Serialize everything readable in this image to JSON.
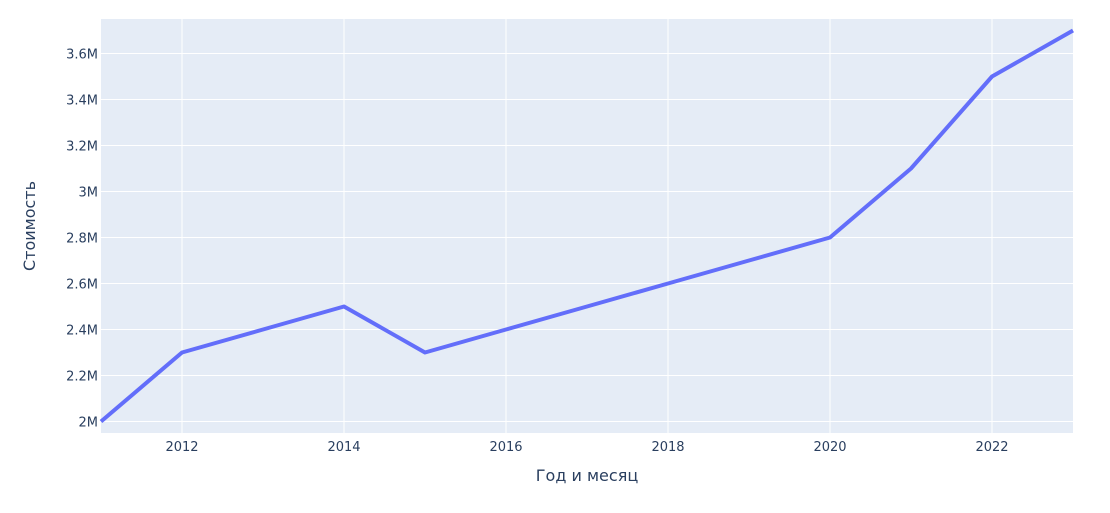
{
  "chart_data": {
    "type": "line",
    "title": "",
    "xlabel": "Год и месяц",
    "ylabel": "Стоимость",
    "x": [
      2011,
      2012,
      2013,
      2014,
      2015,
      2016,
      2017,
      2018,
      2019,
      2020,
      2021,
      2022,
      2023
    ],
    "series": [
      {
        "values": [
          2000000,
          2300000,
          2400000,
          2500000,
          2300000,
          2400000,
          2500000,
          2600000,
          2700000,
          2800000,
          3100000,
          3500000,
          3700000
        ],
        "color": "#636efa"
      }
    ],
    "xlim": [
      2011,
      2023
    ],
    "ylim": [
      1950000,
      3750000
    ],
    "x_ticks": [
      {
        "value": 2012,
        "label": "2012"
      },
      {
        "value": 2014,
        "label": "2014"
      },
      {
        "value": 2016,
        "label": "2016"
      },
      {
        "value": 2018,
        "label": "2018"
      },
      {
        "value": 2020,
        "label": "2020"
      },
      {
        "value": 2022,
        "label": "2022"
      }
    ],
    "y_ticks": [
      {
        "value": 2000000,
        "label": "2M"
      },
      {
        "value": 2200000,
        "label": "2.2M"
      },
      {
        "value": 2400000,
        "label": "2.4M"
      },
      {
        "value": 2600000,
        "label": "2.6M"
      },
      {
        "value": 2800000,
        "label": "2.8M"
      },
      {
        "value": 3000000,
        "label": "3M"
      },
      {
        "value": 3200000,
        "label": "3.2M"
      },
      {
        "value": 3400000,
        "label": "3.4M"
      },
      {
        "value": 3600000,
        "label": "3.6M"
      }
    ],
    "grid": true,
    "plot_background": "#e5ecf6",
    "grid_color": "#ffffff",
    "text_color": "#2a3f5f"
  }
}
